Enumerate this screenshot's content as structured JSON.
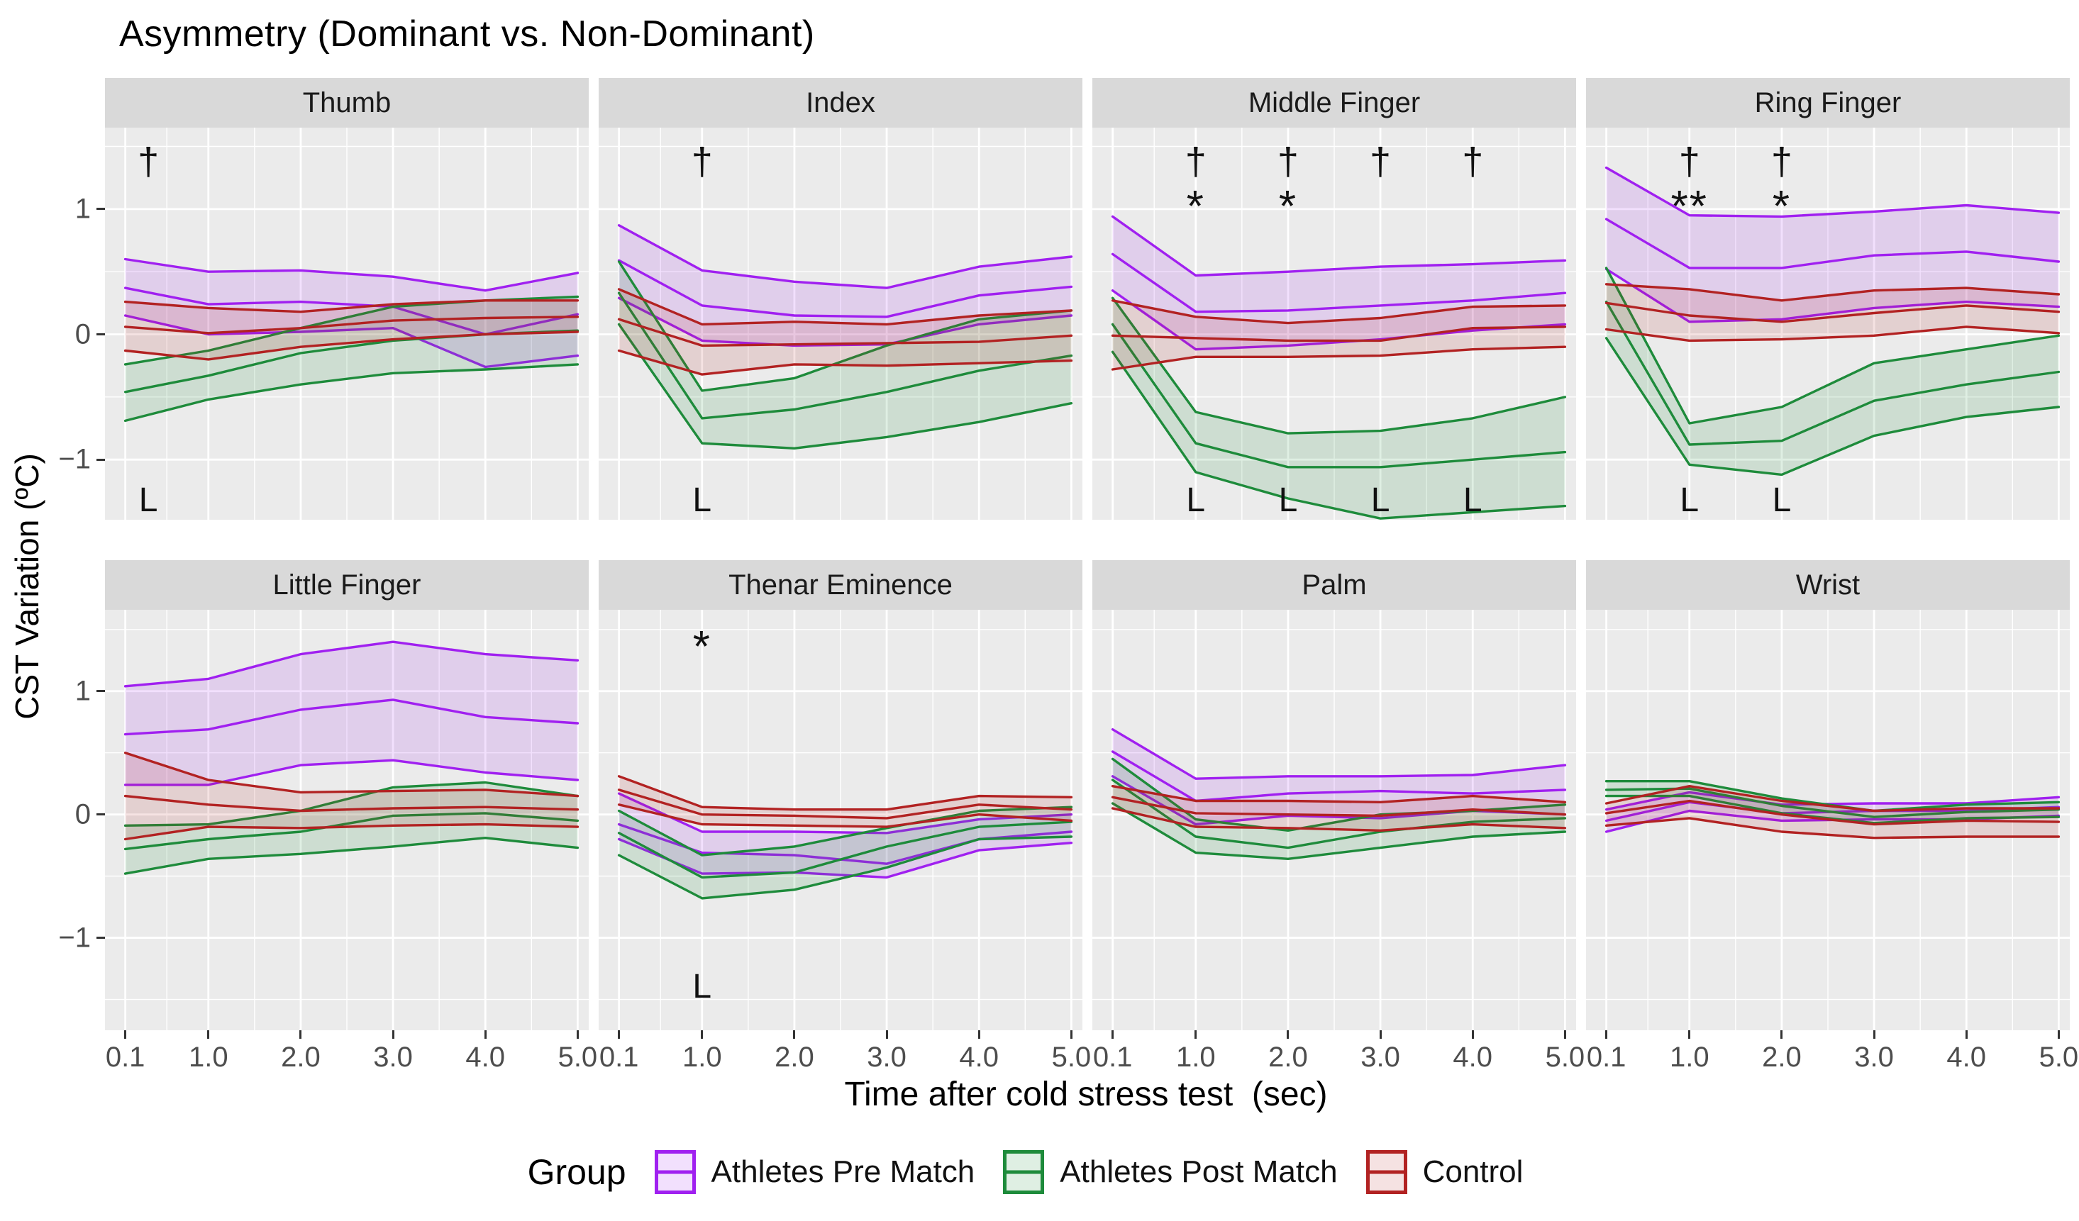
{
  "chart_data": {
    "type": "area",
    "title": "Asymmetry (Dominant vs. Non-Dominant)",
    "xlabel": "Time after cold stress test  (sec)",
    "ylabel": "CST Variation (ºC)",
    "x": [
      0.1,
      1.0,
      2.0,
      3.0,
      4.0,
      5.0
    ],
    "xtick_labels": [
      "0.1",
      "1.0",
      "2.0",
      "3.0",
      "4.0",
      "5.0"
    ],
    "yticks": [
      1,
      0,
      -1
    ],
    "ytick_labels": [
      "1",
      "0",
      "−1"
    ],
    "ylim": [
      -1.6,
      1.65
    ],
    "grid": "on",
    "panel_background": "#ebebeb",
    "strip_background": "#d9d9d9",
    "gridline_color": "#ffffff",
    "legend": {
      "title": "Group",
      "position": "bottom",
      "entries": [
        {
          "key": "pre",
          "label": "Athletes Pre Match",
          "color": "#a020f0",
          "fill": "rgba(160,32,240,0.14)"
        },
        {
          "key": "post",
          "label": "Athletes Post Match",
          "color": "#1e8b3b",
          "fill": "rgba(30,139,59,0.14)"
        },
        {
          "key": "control",
          "label": "Control",
          "color": "#b22222",
          "fill": "rgba(178,34,34,0.13)"
        }
      ]
    },
    "group_draw_order": [
      "pre",
      "post",
      "control"
    ],
    "annotation_symbols": {
      "dagger": "†",
      "star": "*",
      "line_marker": "L"
    },
    "facets": [
      {
        "title": "Thumb",
        "daggers": [
          {
            "x": 0.35,
            "label": "†"
          }
        ],
        "stars": [],
        "l_marks": [
          {
            "x": 0.35,
            "label": "L"
          }
        ],
        "series": {
          "pre": {
            "mean": [
              0.37,
              0.24,
              0.26,
              0.22,
              0.0,
              0.16
            ],
            "upper": [
              0.6,
              0.5,
              0.51,
              0.46,
              0.35,
              0.49
            ],
            "lower": [
              0.15,
              0.0,
              0.02,
              0.05,
              -0.26,
              -0.17
            ]
          },
          "post": {
            "mean": [
              -0.46,
              -0.33,
              -0.15,
              -0.05,
              0.0,
              0.03
            ],
            "upper": [
              -0.24,
              -0.13,
              0.05,
              0.22,
              0.27,
              0.3
            ],
            "lower": [
              -0.69,
              -0.52,
              -0.4,
              -0.31,
              -0.28,
              -0.24
            ]
          },
          "control": {
            "mean": [
              0.06,
              0.01,
              0.05,
              0.11,
              0.13,
              0.14
            ],
            "upper": [
              0.26,
              0.21,
              0.18,
              0.24,
              0.27,
              0.27
            ],
            "lower": [
              -0.13,
              -0.2,
              -0.1,
              -0.04,
              0.0,
              0.02
            ]
          }
        }
      },
      {
        "title": "Index",
        "daggers": [
          {
            "x": 1.0,
            "label": "†"
          }
        ],
        "stars": [],
        "l_marks": [
          {
            "x": 1.0,
            "label": "L"
          }
        ],
        "series": {
          "pre": {
            "mean": [
              0.59,
              0.23,
              0.15,
              0.14,
              0.31,
              0.38
            ],
            "upper": [
              0.87,
              0.51,
              0.42,
              0.37,
              0.54,
              0.62
            ],
            "lower": [
              0.29,
              -0.05,
              -0.09,
              -0.08,
              0.08,
              0.15
            ]
          },
          "post": {
            "mean": [
              0.33,
              -0.67,
              -0.6,
              -0.46,
              -0.29,
              -0.17
            ],
            "upper": [
              0.58,
              -0.45,
              -0.35,
              -0.09,
              0.12,
              0.19
            ],
            "lower": [
              0.08,
              -0.87,
              -0.91,
              -0.82,
              -0.7,
              -0.55
            ]
          },
          "control": {
            "mean": [
              0.12,
              -0.09,
              -0.08,
              -0.07,
              -0.06,
              -0.01
            ],
            "upper": [
              0.36,
              0.08,
              0.1,
              0.08,
              0.15,
              0.19
            ],
            "lower": [
              -0.13,
              -0.32,
              -0.24,
              -0.25,
              -0.23,
              -0.21
            ]
          }
        }
      },
      {
        "title": "Middle Finger",
        "daggers": [
          {
            "x": 1.0,
            "label": "†"
          },
          {
            "x": 2.0,
            "label": "†"
          },
          {
            "x": 3.0,
            "label": "†"
          },
          {
            "x": 4.0,
            "label": "†"
          }
        ],
        "stars": [
          {
            "x": 1.0,
            "label": "*"
          },
          {
            "x": 2.0,
            "label": "*"
          }
        ],
        "l_marks": [
          {
            "x": 1.0,
            "label": "L"
          },
          {
            "x": 2.0,
            "label": "L"
          },
          {
            "x": 3.0,
            "label": "L"
          },
          {
            "x": 4.0,
            "label": "L"
          }
        ],
        "series": {
          "pre": {
            "mean": [
              0.64,
              0.18,
              0.19,
              0.23,
              0.27,
              0.33
            ],
            "upper": [
              0.94,
              0.47,
              0.5,
              0.54,
              0.56,
              0.59
            ],
            "lower": [
              0.35,
              -0.12,
              -0.09,
              -0.04,
              0.03,
              0.08
            ]
          },
          "post": {
            "mean": [
              0.08,
              -0.87,
              -1.06,
              -1.06,
              -1.0,
              -0.94
            ],
            "upper": [
              0.29,
              -0.62,
              -0.79,
              -0.77,
              -0.67,
              -0.5
            ],
            "lower": [
              -0.14,
              -1.1,
              -1.31,
              -1.47,
              -1.42,
              -1.37
            ]
          },
          "control": {
            "mean": [
              -0.01,
              -0.03,
              -0.05,
              -0.05,
              0.05,
              0.06
            ],
            "upper": [
              0.27,
              0.14,
              0.09,
              0.13,
              0.22,
              0.23
            ],
            "lower": [
              -0.28,
              -0.18,
              -0.18,
              -0.17,
              -0.12,
              -0.1
            ]
          }
        }
      },
      {
        "title": "Ring Finger",
        "daggers": [
          {
            "x": 1.0,
            "label": "†"
          },
          {
            "x": 2.0,
            "label": "†"
          }
        ],
        "stars": [
          {
            "x": 1.0,
            "label": "**"
          },
          {
            "x": 2.0,
            "label": "*"
          }
        ],
        "l_marks": [
          {
            "x": 1.0,
            "label": "L"
          },
          {
            "x": 2.0,
            "label": "L"
          }
        ],
        "series": {
          "pre": {
            "mean": [
              0.92,
              0.53,
              0.53,
              0.63,
              0.66,
              0.58
            ],
            "upper": [
              1.33,
              0.95,
              0.94,
              0.98,
              1.03,
              0.97
            ],
            "lower": [
              0.52,
              0.1,
              0.12,
              0.21,
              0.26,
              0.22
            ]
          },
          "post": {
            "mean": [
              0.26,
              -0.88,
              -0.85,
              -0.53,
              -0.4,
              -0.3
            ],
            "upper": [
              0.53,
              -0.71,
              -0.58,
              -0.23,
              -0.12,
              -0.01
            ],
            "lower": [
              -0.03,
              -1.04,
              -1.12,
              -0.81,
              -0.66,
              -0.58
            ]
          },
          "control": {
            "mean": [
              0.25,
              0.15,
              0.1,
              0.17,
              0.23,
              0.18
            ],
            "upper": [
              0.4,
              0.36,
              0.27,
              0.35,
              0.37,
              0.32
            ],
            "lower": [
              0.04,
              -0.05,
              -0.04,
              -0.01,
              0.06,
              0.01
            ]
          }
        }
      },
      {
        "title": "Little Finger",
        "daggers": [],
        "stars": [],
        "l_marks": [],
        "series": {
          "pre": {
            "mean": [
              0.65,
              0.69,
              0.85,
              0.93,
              0.79,
              0.74
            ],
            "upper": [
              1.04,
              1.1,
              1.3,
              1.4,
              1.3,
              1.25
            ],
            "lower": [
              0.24,
              0.24,
              0.4,
              0.44,
              0.34,
              0.28
            ]
          },
          "post": {
            "mean": [
              -0.28,
              -0.2,
              -0.14,
              -0.01,
              0.01,
              -0.05
            ],
            "upper": [
              -0.09,
              -0.08,
              0.03,
              0.22,
              0.26,
              0.15
            ],
            "lower": [
              -0.48,
              -0.36,
              -0.32,
              -0.26,
              -0.19,
              -0.27
            ]
          },
          "control": {
            "mean": [
              0.15,
              0.08,
              0.03,
              0.05,
              0.06,
              0.04
            ],
            "upper": [
              0.5,
              0.28,
              0.18,
              0.19,
              0.2,
              0.15
            ],
            "lower": [
              -0.2,
              -0.1,
              -0.11,
              -0.09,
              -0.08,
              -0.1
            ]
          }
        }
      },
      {
        "title": "Thenar Eminence",
        "daggers": [],
        "stars": [
          {
            "x": 1.0,
            "label": "*",
            "at_top": true
          }
        ],
        "l_marks": [
          {
            "x": 1.0,
            "label": "L"
          }
        ],
        "series": {
          "pre": {
            "mean": [
              -0.08,
              -0.31,
              -0.33,
              -0.4,
              -0.2,
              -0.14
            ],
            "upper": [
              0.17,
              -0.14,
              -0.14,
              -0.15,
              -0.04,
              0.0
            ],
            "lower": [
              -0.2,
              -0.48,
              -0.47,
              -0.51,
              -0.29,
              -0.23
            ]
          },
          "post": {
            "mean": [
              -0.15,
              -0.51,
              -0.47,
              -0.26,
              -0.1,
              -0.06
            ],
            "upper": [
              0.03,
              -0.33,
              -0.26,
              -0.11,
              0.03,
              0.06
            ],
            "lower": [
              -0.33,
              -0.68,
              -0.61,
              -0.43,
              -0.2,
              -0.18
            ]
          },
          "control": {
            "mean": [
              0.2,
              0.0,
              -0.01,
              -0.03,
              0.08,
              0.04
            ],
            "upper": [
              0.31,
              0.06,
              0.04,
              0.04,
              0.15,
              0.14
            ],
            "lower": [
              0.08,
              -0.08,
              -0.09,
              -0.1,
              0.0,
              -0.05
            ]
          }
        }
      },
      {
        "title": "Palm",
        "daggers": [],
        "stars": [],
        "l_marks": [],
        "series": {
          "pre": {
            "mean": [
              0.51,
              0.11,
              0.17,
              0.19,
              0.17,
              0.2
            ],
            "upper": [
              0.69,
              0.29,
              0.31,
              0.31,
              0.32,
              0.4
            ],
            "lower": [
              0.31,
              -0.08,
              -0.01,
              -0.03,
              0.03,
              0.0
            ]
          },
          "post": {
            "mean": [
              0.28,
              -0.18,
              -0.27,
              -0.14,
              -0.06,
              -0.03
            ],
            "upper": [
              0.45,
              -0.04,
              -0.13,
              0.0,
              0.03,
              0.08
            ],
            "lower": [
              0.09,
              -0.31,
              -0.36,
              -0.27,
              -0.18,
              -0.14
            ]
          },
          "control": {
            "mean": [
              0.14,
              0.01,
              0.0,
              -0.01,
              0.04,
              0.0
            ],
            "upper": [
              0.23,
              0.11,
              0.11,
              0.1,
              0.15,
              0.1
            ],
            "lower": [
              0.05,
              -0.1,
              -0.11,
              -0.13,
              -0.08,
              -0.11
            ]
          }
        }
      },
      {
        "title": "Wrist",
        "daggers": [],
        "stars": [],
        "l_marks": [],
        "series": {
          "pre": {
            "mean": [
              -0.05,
              0.1,
              0.01,
              0.03,
              0.03,
              0.06
            ],
            "upper": [
              0.04,
              0.18,
              0.08,
              0.09,
              0.09,
              0.14
            ],
            "lower": [
              -0.14,
              0.03,
              -0.05,
              -0.04,
              -0.04,
              -0.01
            ]
          },
          "post": {
            "mean": [
              0.2,
              0.21,
              0.07,
              -0.02,
              0.02,
              0.04
            ],
            "upper": [
              0.27,
              0.27,
              0.13,
              0.03,
              0.08,
              0.1
            ],
            "lower": [
              0.15,
              0.15,
              0.01,
              -0.07,
              -0.03,
              -0.02
            ]
          },
          "control": {
            "mean": [
              0.01,
              0.11,
              0.0,
              -0.08,
              -0.05,
              -0.06
            ],
            "upper": [
              0.09,
              0.23,
              0.11,
              0.03,
              0.05,
              0.05
            ],
            "lower": [
              -0.09,
              -0.03,
              -0.14,
              -0.19,
              -0.18,
              -0.18
            ]
          }
        }
      }
    ]
  }
}
